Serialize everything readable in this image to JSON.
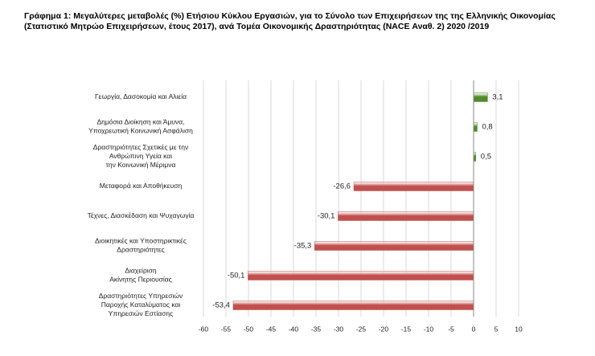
{
  "chart_data": {
    "type": "hbar",
    "title": "Γράφημα 1: Μεγαλύτερες μεταβολές (%) Ετήσιου Κύκλου Εργασιών, για το Σύνολο των Επιχειρήσεων της της Ελληνικής Οικονομίας (Στατιστικό Μητρώο Επιχειρήσεων, έτους 2017), ανά Τομέα Οικονομικής Δραστηριότητας (NACE Αναθ. 2) 2020 /2019",
    "categories": [
      [
        "Γεωργία, Δασοκομία και Αλιεία"
      ],
      [
        "Δημόσια Διοίκηση και Άμυνα,",
        "Υποχρεωτική Κοινωνική Ασφάλιση"
      ],
      [
        "Δραστηριότητες Σχετικές με την",
        "Ανθρώπινη Υγεία και",
        "την Κοινωνική Μέριμνα"
      ],
      [
        "Μεταφορά και Αποθήκευση"
      ],
      [
        "Τέχνες, Διασκέδαση και Ψυχαγωγία"
      ],
      [
        "Διοικητικές και Υποστηρικτικές",
        "Δραστηριότητες"
      ],
      [
        "Διαχείριση",
        "Ακίνητης Περιουσίας"
      ],
      [
        "Δραστηριότητες Υπηρεσιών",
        "Παροχής Καταλύματος και",
        "Υπηρεσιών Εστίασης"
      ]
    ],
    "values": [
      3.1,
      0.8,
      0.5,
      -26.6,
      -30.1,
      -35.3,
      -50.1,
      -53.4
    ],
    "value_labels": [
      "3,1",
      "0,8",
      "0,5",
      "-26,6",
      "-30,1",
      "-35,3",
      "-50,1",
      "-53,4"
    ],
    "colors": [
      "#4f8a2b",
      "#4f8a2b",
      "#4f8a2b",
      "#c0504d",
      "#c0504d",
      "#c0504d",
      "#c0504d",
      "#c0504d"
    ],
    "xlim": [
      -60,
      10
    ],
    "xticks": [
      -60,
      -55,
      -50,
      -45,
      -40,
      -35,
      -30,
      -25,
      -20,
      -15,
      -10,
      -5,
      0,
      5,
      10
    ],
    "grid": true
  }
}
